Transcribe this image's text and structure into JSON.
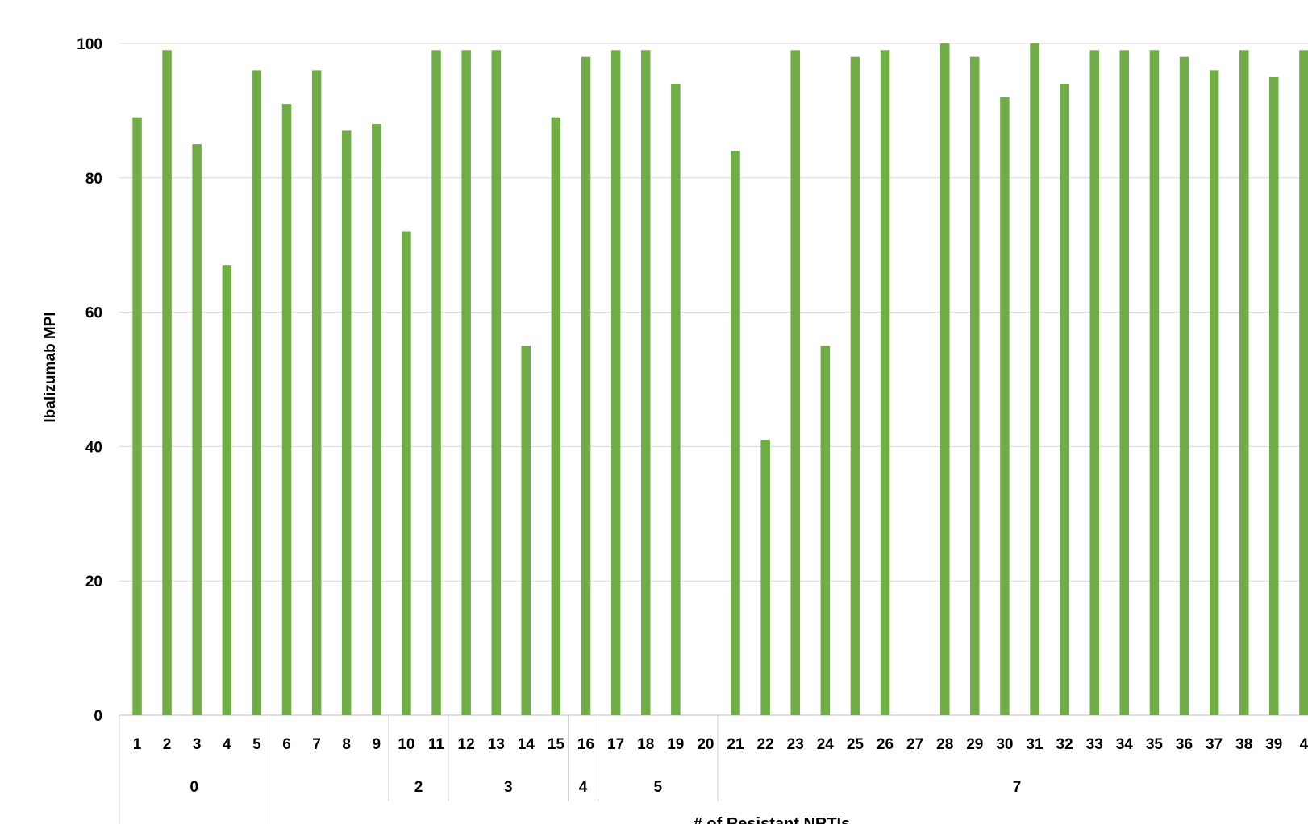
{
  "chart_data": {
    "type": "bar",
    "title": "",
    "ylabel": "Ibalizumab MPI",
    "xlabel": "# of Resistant NRTIs",
    "ylim": [
      0,
      100
    ],
    "yticks": [
      0,
      20,
      40,
      60,
      80,
      100
    ],
    "grid": true,
    "bar_color": "#70ad47",
    "categories": [
      "1",
      "2",
      "3",
      "4",
      "5",
      "6",
      "7",
      "8",
      "9",
      "10",
      "11",
      "12",
      "13",
      "14",
      "15",
      "16",
      "17",
      "18",
      "19",
      "20",
      "21",
      "22",
      "23",
      "24",
      "25",
      "26",
      "27",
      "28",
      "29",
      "30",
      "31",
      "32",
      "33",
      "34",
      "35",
      "36",
      "37",
      "38",
      "39",
      "4"
    ],
    "values": [
      89,
      99,
      85,
      67,
      96,
      91,
      96,
      87,
      88,
      72,
      99,
      99,
      99,
      55,
      89,
      98,
      99,
      99,
      94,
      0,
      84,
      41,
      99,
      55,
      98,
      99,
      0,
      100,
      98,
      92,
      100,
      94,
      99,
      99,
      99,
      98,
      96,
      99,
      95,
      99
    ],
    "groups": [
      {
        "label": "0",
        "start": 0,
        "end": 4
      },
      {
        "label": "",
        "start": 5,
        "end": 8
      },
      {
        "label": "2",
        "start": 9,
        "end": 10
      },
      {
        "label": "3",
        "start": 11,
        "end": 14
      },
      {
        "label": "4",
        "start": 15,
        "end": 15
      },
      {
        "label": "5",
        "start": 16,
        "end": 19
      },
      {
        "label": "7",
        "start": 20,
        "end": 39
      }
    ]
  }
}
